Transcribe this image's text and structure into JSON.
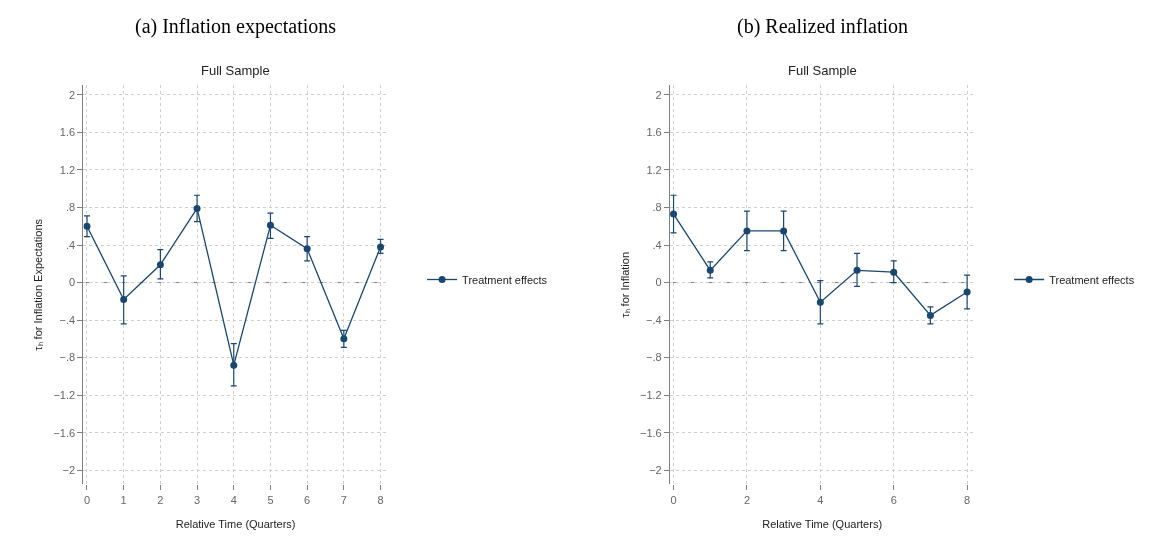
{
  "chart_data": [
    {
      "type": "line",
      "title": "(a) Inflation expectations",
      "subtitle": "Full Sample",
      "xlabel": "Relative Time (Quarters)",
      "ylabel": "τₕ for Inflation Expectations",
      "x": [
        0,
        1,
        2,
        3,
        4,
        5,
        6,
        7,
        8
      ],
      "series": [
        {
          "name": "Treatment effects",
          "color": "#1a476f",
          "values": [
            0.6,
            -0.18,
            0.19,
            0.79,
            -0.88,
            0.61,
            0.36,
            -0.6,
            0.38
          ],
          "errors": [
            [
              0.49,
              0.71
            ],
            [
              -0.44,
              0.07
            ],
            [
              0.04,
              0.35
            ],
            [
              0.65,
              0.93
            ],
            [
              -1.1,
              -0.65
            ],
            [
              0.47,
              0.74
            ],
            [
              0.23,
              0.49
            ],
            [
              -0.69,
              -0.51
            ],
            [
              0.31,
              0.46
            ]
          ]
        }
      ],
      "xlim": [
        -0.1,
        8.2
      ],
      "xticks": [
        0,
        1,
        2,
        3,
        4,
        5,
        6,
        7,
        8
      ],
      "ylim": [
        -2.15,
        2.1
      ],
      "yticks": [
        {
          "value": -2,
          "label": "−2"
        },
        {
          "value": -1.6,
          "label": "−1.6"
        },
        {
          "value": -1.2,
          "label": "−1.2"
        },
        {
          "value": -0.8,
          "label": "−.8"
        },
        {
          "value": -0.4,
          "label": "−.4"
        },
        0,
        {
          "value": 0.4,
          "label": ".4"
        },
        {
          "value": 0.8,
          "label": ".8"
        },
        1.2,
        1.6,
        2
      ],
      "ref_lines": [
        {
          "axis": "y",
          "value": 0,
          "color": "#7f7f7f",
          "line_style": "dashed"
        }
      ],
      "grid": true,
      "legend": "right",
      "marker": "circle",
      "line_style": "solid"
    },
    {
      "type": "line",
      "title": "(b) Realized inflation",
      "subtitle": "Full Sample",
      "xlabel": "Relative Time (Quarters)",
      "ylabel": "τₕ for Inflation",
      "x": [
        0,
        1,
        2,
        3,
        4,
        5,
        6,
        7,
        8
      ],
      "series": [
        {
          "name": "Treatment effects",
          "color": "#1a476f",
          "values": [
            0.73,
            0.13,
            0.55,
            0.55,
            -0.21,
            0.13,
            0.11,
            -0.35,
            -0.1
          ],
          "errors": [
            [
              0.53,
              0.93
            ],
            [
              0.05,
              0.22
            ],
            [
              0.34,
              0.76
            ],
            [
              0.34,
              0.76
            ],
            [
              -0.44,
              0.02
            ],
            [
              -0.04,
              0.31
            ],
            [
              0.0,
              0.23
            ],
            [
              -0.44,
              -0.26
            ],
            [
              -0.28,
              0.08
            ]
          ]
        }
      ],
      "xlim": [
        -0.1,
        8.2
      ],
      "xticks": [
        0,
        2,
        4,
        6,
        8
      ],
      "ylim": [
        -2.15,
        2.1
      ],
      "yticks": [
        {
          "value": -2,
          "label": "−2"
        },
        {
          "value": -1.6,
          "label": "−1.6"
        },
        {
          "value": -1.2,
          "label": "−1.2"
        },
        {
          "value": -0.8,
          "label": "−.8"
        },
        {
          "value": -0.4,
          "label": "−.4"
        },
        0,
        {
          "value": 0.4,
          "label": ".4"
        },
        {
          "value": 0.8,
          "label": ".8"
        },
        1.2,
        1.6,
        2
      ],
      "ref_lines": [
        {
          "axis": "y",
          "value": 0,
          "color": "#7f7f7f",
          "line_style": "dashed"
        }
      ],
      "grid": true,
      "legend": "right",
      "marker": "circle",
      "line_style": "solid"
    }
  ]
}
